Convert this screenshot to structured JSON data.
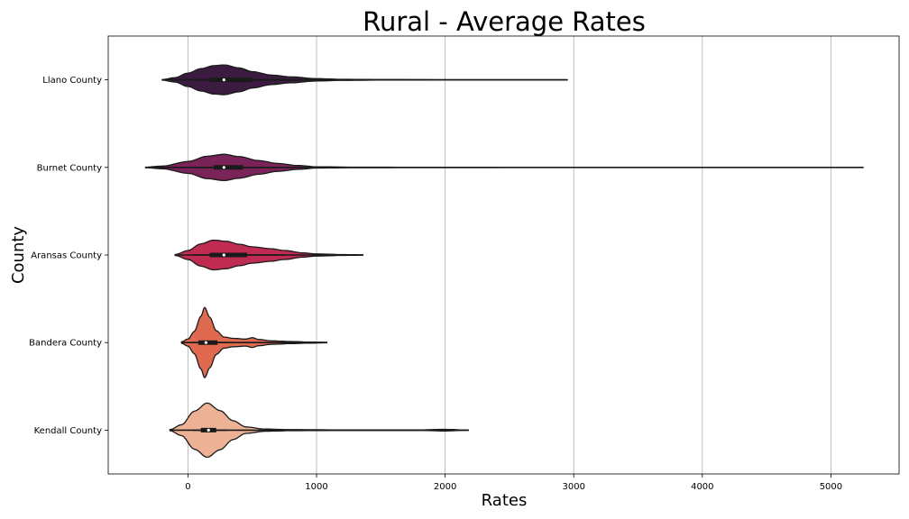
{
  "chart_data": {
    "type": "violin",
    "title": "Rural - Average Rates",
    "xlabel": "Rates",
    "ylabel": "County",
    "xlim": [
      -620,
      5530
    ],
    "xticks": [
      0,
      1000,
      2000,
      3000,
      4000,
      5000
    ],
    "grid": "vertical",
    "orientation": "horizontal",
    "categories": [
      "Llano County",
      "Burnet County",
      "Aransas County",
      "Bandera County",
      "Kendall County"
    ],
    "colors": [
      "#3b1c40",
      "#7a2358",
      "#c02b52",
      "#e06a4f",
      "#edb195"
    ],
    "violins": [
      {
        "name": "Llano County",
        "min": -200,
        "max": 2950,
        "q1": 170,
        "median": 280,
        "q3": 500,
        "whisker_low": 0,
        "whisker_high": 820,
        "density": [
          [
            -200,
            0.02
          ],
          [
            -100,
            0.15
          ],
          [
            0,
            0.45
          ],
          [
            100,
            0.75
          ],
          [
            200,
            0.95
          ],
          [
            280,
            1.0
          ],
          [
            400,
            0.8
          ],
          [
            500,
            0.55
          ],
          [
            650,
            0.32
          ],
          [
            800,
            0.2
          ],
          [
            1000,
            0.08
          ],
          [
            1200,
            0.035
          ],
          [
            1500,
            0.02
          ],
          [
            2000,
            0.008
          ],
          [
            2950,
            0.005
          ]
        ],
        "peak_halfwidth": 0.17
      },
      {
        "name": "Burnet County",
        "min": -330,
        "max": 5250,
        "q1": 200,
        "median": 280,
        "q3": 430,
        "whisker_low": 0,
        "whisker_high": 690,
        "density": [
          [
            -330,
            0.02
          ],
          [
            -200,
            0.1
          ],
          [
            0,
            0.45
          ],
          [
            150,
            0.85
          ],
          [
            280,
            1.0
          ],
          [
            400,
            0.82
          ],
          [
            550,
            0.52
          ],
          [
            700,
            0.3
          ],
          [
            850,
            0.15
          ],
          [
            1000,
            0.05
          ],
          [
            1300,
            0.02
          ],
          [
            2000,
            0.012
          ],
          [
            3000,
            0.008
          ],
          [
            4000,
            0.008
          ],
          [
            5250,
            0.005
          ]
        ],
        "peak_halfwidth": 0.15
      },
      {
        "name": "Aransas County",
        "min": -100,
        "max": 1360,
        "q1": 170,
        "median": 280,
        "q3": 460,
        "whisker_low": 40,
        "whisker_high": 760,
        "density": [
          [
            -100,
            0.03
          ],
          [
            0,
            0.3
          ],
          [
            100,
            0.75
          ],
          [
            200,
            1.0
          ],
          [
            300,
            0.92
          ],
          [
            400,
            0.72
          ],
          [
            500,
            0.55
          ],
          [
            650,
            0.42
          ],
          [
            750,
            0.3
          ],
          [
            900,
            0.14
          ],
          [
            1000,
            0.07
          ],
          [
            1200,
            0.03
          ],
          [
            1360,
            0.01
          ]
        ],
        "peak_halfwidth": 0.17
      },
      {
        "name": "Bandera County",
        "min": -50,
        "max": 1080,
        "q1": 80,
        "median": 140,
        "q3": 230,
        "whisker_low": 30,
        "whisker_high": 300,
        "density": [
          [
            -50,
            0.02
          ],
          [
            0,
            0.1
          ],
          [
            50,
            0.32
          ],
          [
            100,
            0.75
          ],
          [
            130,
            1.0
          ],
          [
            170,
            0.72
          ],
          [
            220,
            0.34
          ],
          [
            280,
            0.16
          ],
          [
            350,
            0.12
          ],
          [
            450,
            0.1
          ],
          [
            500,
            0.14
          ],
          [
            550,
            0.09
          ],
          [
            650,
            0.05
          ],
          [
            800,
            0.03
          ],
          [
            950,
            0.015
          ],
          [
            1080,
            0.008
          ]
        ],
        "peak_halfwidth": 0.4
      },
      {
        "name": "Kendall County",
        "min": -140,
        "max": 2180,
        "q1": 100,
        "median": 160,
        "q3": 220,
        "whisker_low": 40,
        "whisker_high": 310,
        "density": [
          [
            -140,
            0.02
          ],
          [
            -50,
            0.2
          ],
          [
            50,
            0.7
          ],
          [
            150,
            1.0
          ],
          [
            250,
            0.72
          ],
          [
            350,
            0.35
          ],
          [
            450,
            0.12
          ],
          [
            600,
            0.04
          ],
          [
            800,
            0.02
          ],
          [
            1200,
            0.01
          ],
          [
            1800,
            0.01
          ],
          [
            2000,
            0.03
          ],
          [
            2180,
            0.005
          ]
        ],
        "peak_halfwidth": 0.31
      }
    ]
  }
}
